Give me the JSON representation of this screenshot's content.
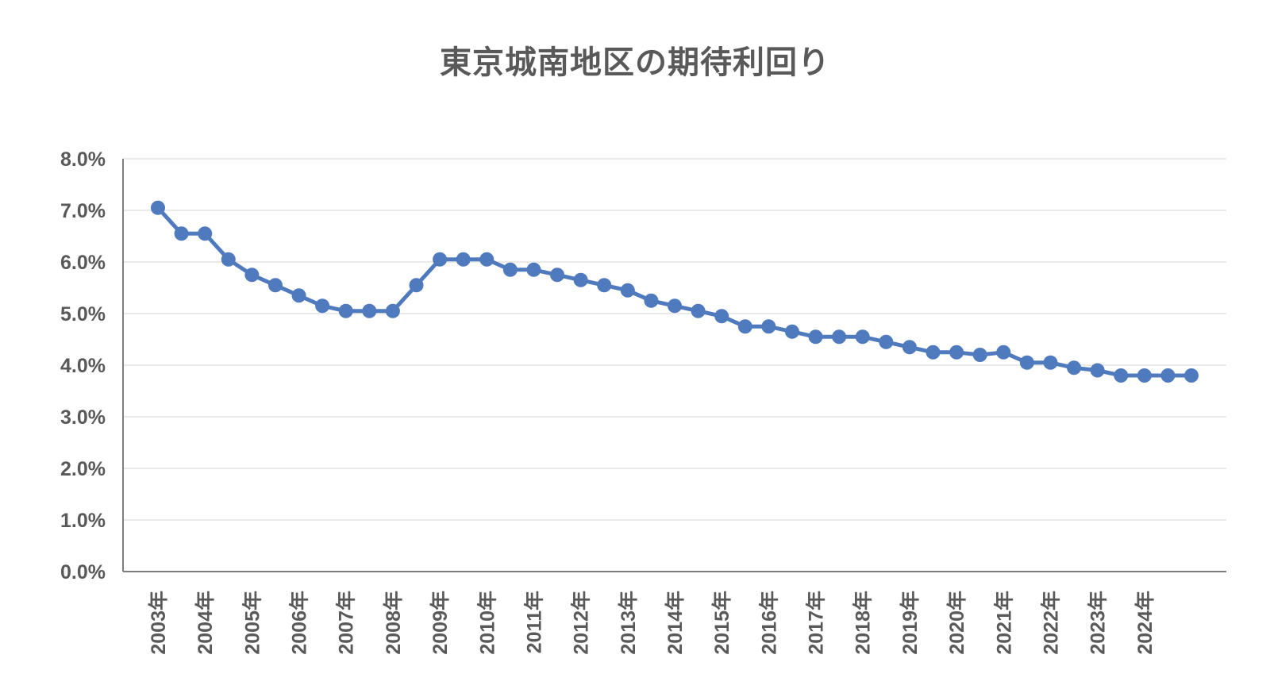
{
  "chart_data": {
    "type": "line",
    "title": "東京城南地区の期待利回り",
    "xlabel": "",
    "ylabel": "",
    "ylim": [
      0,
      8
    ],
    "y_ticks": [
      "0.0%",
      "1.0%",
      "2.0%",
      "3.0%",
      "4.0%",
      "5.0%",
      "6.0%",
      "7.0%",
      "8.0%"
    ],
    "x_tick_labels": [
      "2003年",
      "2004年",
      "2005年",
      "2006年",
      "2007年",
      "2008年",
      "2009年",
      "2010年",
      "2011年",
      "2012年",
      "2013年",
      "2014年",
      "2015年",
      "2016年",
      "2017年",
      "2018年",
      "2019年",
      "2020年",
      "2021年",
      "2022年",
      "2023年",
      "2024年"
    ],
    "points_per_year": 2,
    "grid": true,
    "legend": "none",
    "line_color": "#4F7BBE",
    "series": [
      {
        "values": [
          7.05,
          6.55,
          6.55,
          6.05,
          5.75,
          5.55,
          5.35,
          5.15,
          5.05,
          5.05,
          5.05,
          5.55,
          6.05,
          6.05,
          6.05,
          5.85,
          5.85,
          5.75,
          5.65,
          5.55,
          5.45,
          5.25,
          5.15,
          5.05,
          4.95,
          4.75,
          4.75,
          4.65,
          4.55,
          4.55,
          4.55,
          4.45,
          4.35,
          4.25,
          4.25,
          4.2,
          4.25,
          4.05,
          4.05,
          3.95,
          3.9,
          3.8,
          3.8,
          3.8,
          3.8
        ]
      }
    ]
  }
}
